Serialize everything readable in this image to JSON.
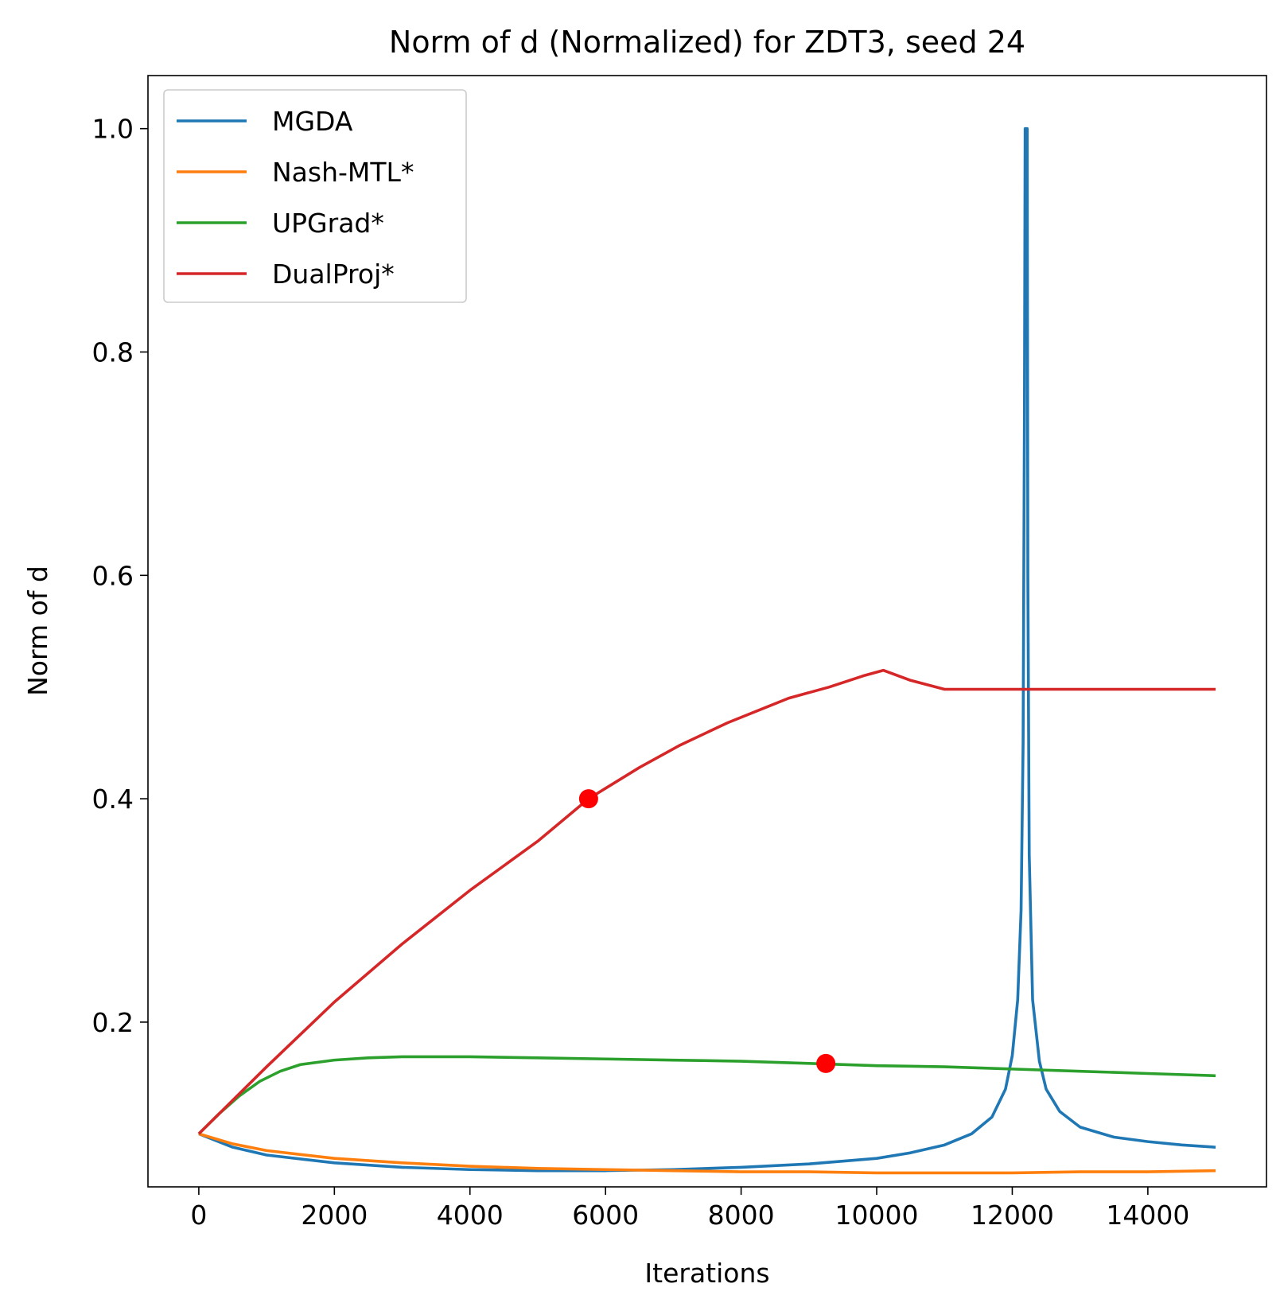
{
  "chart_data": {
    "type": "line",
    "title": "Norm of d (Normalized) for ZDT3, seed 24",
    "xlabel": "Iterations",
    "ylabel": "Norm of d",
    "xlim": [
      -750,
      15750
    ],
    "ylim": [
      0.0525,
      1.0475
    ],
    "xticks": [
      0,
      2000,
      4000,
      6000,
      8000,
      10000,
      12000,
      14000
    ],
    "xtick_labels": [
      "0",
      "2000",
      "4000",
      "6000",
      "8000",
      "10000",
      "12000",
      "14000"
    ],
    "yticks": [
      0.2,
      0.4,
      0.6,
      0.8,
      1.0
    ],
    "ytick_labels": [
      "0.2",
      "0.4",
      "0.6",
      "0.8",
      "1.0"
    ],
    "grid": false,
    "legend_position": "upper-left",
    "series": [
      {
        "name": "MGDA",
        "color": "#1f77b4",
        "x": [
          0,
          500,
          1000,
          2000,
          3000,
          4000,
          5000,
          6000,
          7000,
          8000,
          9000,
          10000,
          10500,
          11000,
          11400,
          11700,
          11900,
          12000,
          12080,
          12130,
          12160,
          12180,
          12190,
          12200,
          12210,
          12220,
          12230,
          12250,
          12300,
          12400,
          12500,
          12700,
          13000,
          13500,
          14000,
          14500,
          15000
        ],
        "y": [
          0.1,
          0.088,
          0.081,
          0.074,
          0.07,
          0.068,
          0.067,
          0.067,
          0.068,
          0.07,
          0.073,
          0.078,
          0.083,
          0.09,
          0.1,
          0.115,
          0.14,
          0.17,
          0.22,
          0.3,
          0.45,
          0.75,
          1.0,
          1.0,
          1.0,
          1.0,
          0.6,
          0.35,
          0.22,
          0.165,
          0.14,
          0.12,
          0.106,
          0.097,
          0.093,
          0.09,
          0.088
        ]
      },
      {
        "name": "Nash-MTL*",
        "color": "#ff7f0e",
        "x": [
          0,
          500,
          1000,
          2000,
          3000,
          4000,
          5000,
          6000,
          7000,
          8000,
          9000,
          10000,
          11000,
          12000,
          13000,
          14000,
          15000
        ],
        "y": [
          0.1,
          0.091,
          0.085,
          0.078,
          0.074,
          0.071,
          0.069,
          0.068,
          0.067,
          0.066,
          0.066,
          0.065,
          0.065,
          0.065,
          0.066,
          0.066,
          0.067
        ]
      },
      {
        "name": "UPGrad*",
        "color": "#2ca02c",
        "x": [
          0,
          300,
          600,
          900,
          1200,
          1500,
          2000,
          2500,
          3000,
          3500,
          4000,
          5000,
          6000,
          7000,
          8000,
          9000,
          10000,
          11000,
          12000,
          13000,
          14000,
          15000
        ],
        "y": [
          0.1,
          0.118,
          0.134,
          0.147,
          0.156,
          0.162,
          0.166,
          0.168,
          0.169,
          0.169,
          0.169,
          0.168,
          0.167,
          0.166,
          0.165,
          0.163,
          0.161,
          0.16,
          0.158,
          0.156,
          0.154,
          0.152
        ]
      },
      {
        "name": "DualProj*",
        "color": "#d62728",
        "x": [
          0,
          1000,
          2000,
          3000,
          4000,
          5000,
          5750,
          6500,
          7100,
          7800,
          8700,
          9300,
          9800,
          10100,
          10500,
          11000,
          12000,
          13000,
          14000,
          15000
        ],
        "y": [
          0.1,
          0.16,
          0.218,
          0.27,
          0.318,
          0.362,
          0.4,
          0.428,
          0.448,
          0.468,
          0.49,
          0.5,
          0.51,
          0.515,
          0.506,
          0.498,
          0.498,
          0.498,
          0.498,
          0.498
        ]
      }
    ],
    "markers": [
      {
        "x": 5750,
        "y": 0.4,
        "color": "#ff0000"
      },
      {
        "x": 9250,
        "y": 0.163,
        "color": "#ff0000"
      }
    ]
  }
}
